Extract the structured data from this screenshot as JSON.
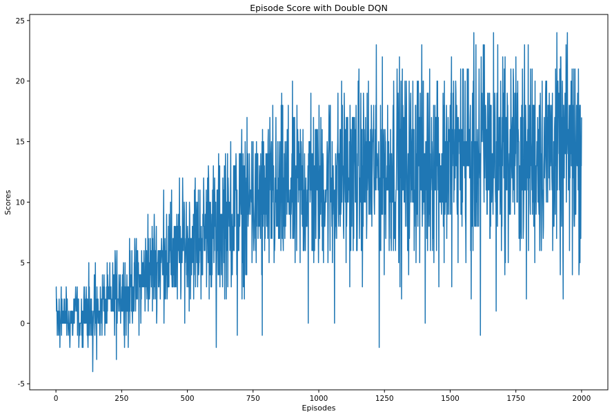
{
  "chart_data": {
    "type": "line",
    "title": "Episode Score with Double DQN",
    "xlabel": "Episodes",
    "ylabel": "Scores",
    "xlim": [
      -100,
      2100
    ],
    "ylim": [
      -5.5,
      25.5
    ],
    "xticks": [
      "0",
      "250",
      "500",
      "750",
      "1000",
      "1250",
      "1500",
      "1750",
      "2000"
    ],
    "yticks": [
      "-5",
      "0",
      "5",
      "10",
      "15",
      "20",
      "25"
    ],
    "grid": false,
    "line_color": "#1f77b4",
    "series": [
      {
        "x_start": 0,
        "x_step": 10,
        "values": [
          1,
          0,
          1,
          0,
          1,
          0,
          0,
          1,
          1,
          0,
          0,
          1,
          1,
          2,
          0,
          1,
          1,
          1,
          2,
          1,
          2,
          2,
          2,
          3,
          3,
          2,
          3,
          2,
          3,
          3,
          3,
          4,
          3,
          4,
          4,
          4,
          4,
          5,
          5,
          5,
          5,
          5,
          6,
          5,
          5,
          6,
          5,
          6,
          6,
          7,
          6,
          7,
          7,
          7,
          7,
          7,
          7,
          8,
          8,
          8,
          8,
          7,
          8,
          8,
          9,
          8,
          8,
          9,
          9,
          9,
          9,
          10,
          9,
          9,
          10,
          10,
          9,
          10,
          10,
          10,
          10,
          10,
          10,
          10,
          10,
          10,
          11,
          10,
          11,
          11,
          11,
          10,
          11,
          11,
          11,
          11,
          11,
          11,
          11,
          11,
          11,
          11,
          12,
          11,
          12,
          11,
          12,
          12,
          12,
          12,
          12,
          12,
          12,
          12,
          12,
          13,
          12,
          12,
          13,
          12,
          12,
          13,
          13,
          12,
          13,
          13,
          12,
          13,
          13,
          13,
          13,
          13,
          13,
          13,
          12,
          13,
          13,
          13,
          14,
          13,
          13,
          13,
          13,
          14,
          13,
          14,
          13,
          13,
          13,
          14,
          13,
          14,
          14,
          13,
          14,
          14,
          13,
          14,
          13,
          14,
          14,
          14,
          14,
          14,
          14,
          14,
          13,
          14,
          14,
          14,
          14,
          14,
          13,
          14,
          14,
          14,
          13,
          14,
          14,
          14,
          14,
          14,
          14,
          14,
          14,
          14,
          14,
          14,
          15,
          14,
          14,
          14,
          13,
          14,
          15,
          14,
          14,
          15,
          14,
          14,
          15
        ],
        "extremes": [
          [
            0,
            3
          ],
          [
            5,
            -1
          ],
          [
            15,
            -2
          ],
          [
            20,
            3
          ],
          [
            100,
            -2
          ],
          [
            125,
            5
          ],
          [
            140,
            -4
          ],
          [
            150,
            5
          ],
          [
            155,
            -3
          ],
          [
            225,
            6
          ],
          [
            230,
            -3
          ],
          [
            275,
            -2
          ],
          [
            300,
            7
          ],
          [
            350,
            9
          ],
          [
            410,
            11
          ],
          [
            440,
            11
          ],
          [
            470,
            12
          ],
          [
            530,
            12
          ],
          [
            580,
            13
          ],
          [
            610,
            -2
          ],
          [
            645,
            14
          ],
          [
            665,
            15
          ],
          [
            690,
            -1
          ],
          [
            720,
            15
          ],
          [
            745,
            15
          ],
          [
            785,
            -1
          ],
          [
            825,
            18
          ],
          [
            880,
            16
          ],
          [
            920,
            16
          ],
          [
            960,
            0
          ],
          [
            970,
            19
          ],
          [
            1040,
            17
          ],
          [
            1060,
            0
          ],
          [
            1090,
            18
          ],
          [
            1140,
            16
          ],
          [
            1200,
            18
          ],
          [
            1230,
            -2
          ],
          [
            1285,
            20
          ],
          [
            1300,
            19
          ],
          [
            1315,
            2
          ],
          [
            1375,
            20
          ],
          [
            1405,
            0
          ],
          [
            1450,
            20
          ],
          [
            1505,
            22
          ],
          [
            1550,
            21
          ],
          [
            1565,
            21
          ],
          [
            1580,
            2
          ],
          [
            1610,
            21
          ],
          [
            1615,
            -1
          ],
          [
            1630,
            23
          ],
          [
            1665,
            24
          ],
          [
            1675,
            1
          ],
          [
            1700,
            22
          ],
          [
            1740,
            21
          ],
          [
            1775,
            21
          ],
          [
            1790,
            2
          ],
          [
            1850,
            20
          ],
          [
            1920,
            22
          ],
          [
            1930,
            2
          ],
          [
            1960,
            20
          ],
          [
            1965,
            4
          ],
          [
            1985,
            19
          ],
          [
            2000,
            17
          ]
        ]
      }
    ]
  }
}
